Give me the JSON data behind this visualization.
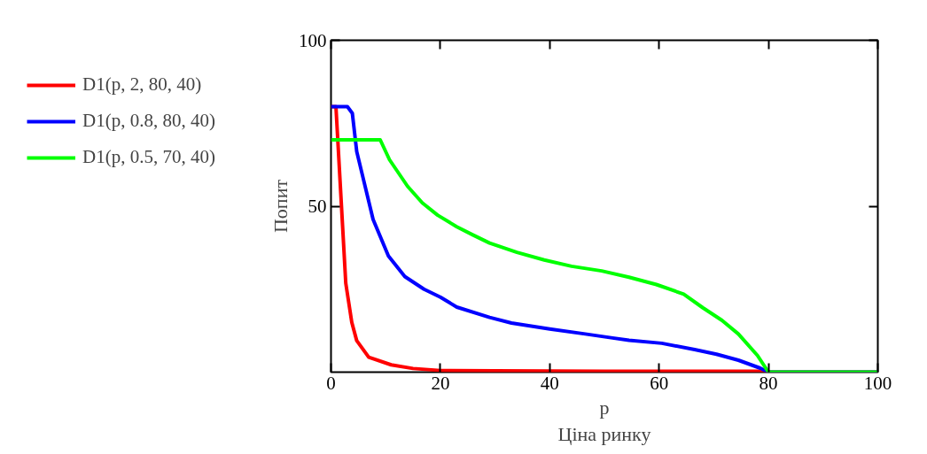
{
  "chart_data": {
    "type": "line",
    "xlabel": "p\nЦіна ринку",
    "ylabel": "Попит",
    "xlim": [
      0,
      100
    ],
    "ylim": [
      0,
      100
    ],
    "xticks": [
      0,
      20,
      40,
      60,
      80,
      100
    ],
    "yticks": [
      50,
      100
    ],
    "grid": false,
    "legend": "left",
    "line_style": "solid",
    "marker": "none",
    "series": [
      {
        "name": "D1(p, 2, 80, 40)",
        "color": "#ff0000",
        "x": [
          0,
          0.9,
          2.7,
          3.8,
          4.7,
          6.9,
          11,
          15,
          20,
          30,
          50,
          79,
          80,
          100
        ],
        "values": [
          80,
          80,
          26.8,
          15,
          9.5,
          4.5,
          2.2,
          1.1,
          0.5,
          0.4,
          0.3,
          0.3,
          0,
          0
        ]
      },
      {
        "name": "D1(p, 0.8, 80, 40)",
        "color": "#0000ff",
        "x": [
          0,
          3,
          3.9,
          4.7,
          7.7,
          10.5,
          13.5,
          17,
          20,
          23,
          29,
          33,
          40,
          46.5,
          51.5,
          54.5,
          60.5,
          66.5,
          70.5,
          74.5,
          78.5,
          80,
          100
        ],
        "values": [
          80,
          80,
          78,
          66.5,
          46,
          35,
          28.8,
          25,
          22.6,
          19.6,
          16.5,
          14.8,
          13,
          11.5,
          10.3,
          9.6,
          8.7,
          6.8,
          5.4,
          3.6,
          1.2,
          0,
          0
        ]
      },
      {
        "name": "D1(p, 0.5, 70, 40)",
        "color": "#00ff00",
        "x": [
          0,
          9,
          10.7,
          14,
          16.7,
          19.5,
          23,
          26,
          29,
          34,
          39,
          44,
          49.5,
          54.5,
          59.5,
          64.5,
          68,
          71.5,
          74.5,
          78,
          80,
          100
        ],
        "values": [
          70,
          70,
          64,
          56,
          51,
          47.3,
          43.8,
          41.3,
          38.9,
          36.1,
          33.8,
          31.9,
          30.5,
          28.6,
          26.4,
          23.5,
          19.4,
          15.6,
          11.5,
          5,
          0,
          0
        ]
      }
    ]
  }
}
